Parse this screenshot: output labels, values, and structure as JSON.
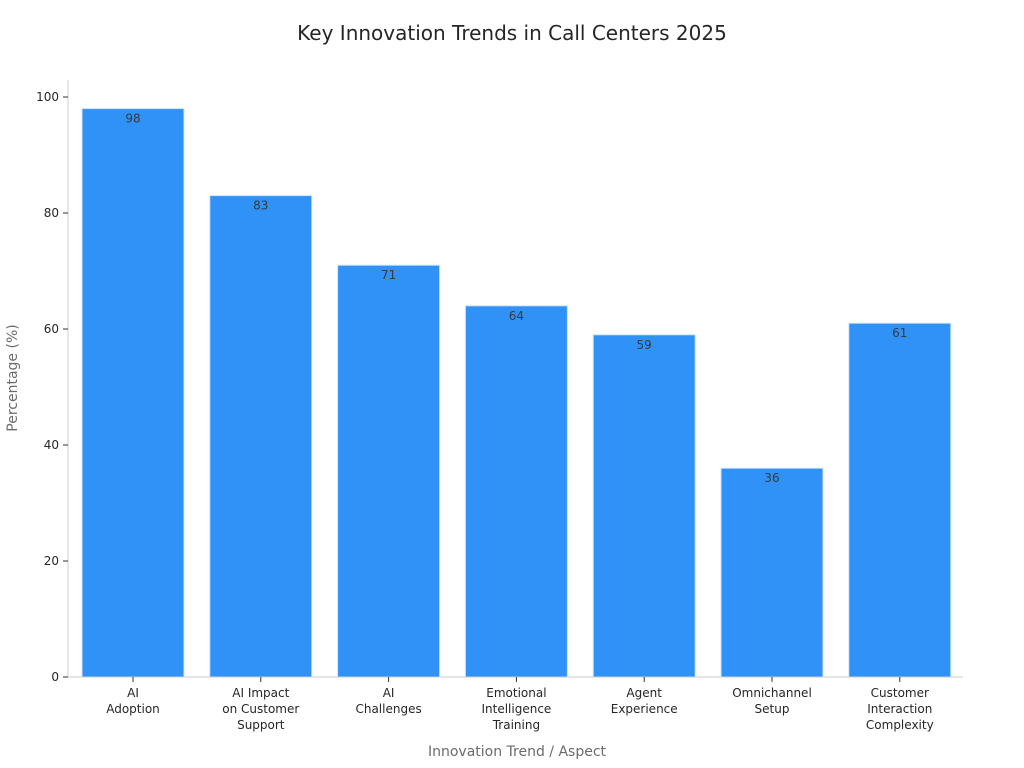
{
  "chart_data": {
    "type": "bar",
    "title": "Key Innovation Trends in Call Centers 2025",
    "xlabel": "Innovation Trend / Aspect",
    "ylabel": "Percentage (%)",
    "categories": [
      [
        "AI",
        "Adoption"
      ],
      [
        "AI Impact",
        "on Customer",
        "Support"
      ],
      [
        "AI",
        "Challenges"
      ],
      [
        "Emotional",
        "Intelligence",
        "Training"
      ],
      [
        "Agent",
        "Experience"
      ],
      [
        "Omnichannel",
        "Setup"
      ],
      [
        "Customer",
        "Interaction",
        "Complexity"
      ]
    ],
    "values": [
      98,
      83,
      71,
      64,
      59,
      36,
      61
    ],
    "ylim": [
      0,
      100
    ],
    "yticks": [
      0,
      20,
      40,
      60,
      80,
      100
    ],
    "grid": false,
    "bar_color": "#3091f7",
    "bar_edge_color": "#cfe4fb"
  }
}
